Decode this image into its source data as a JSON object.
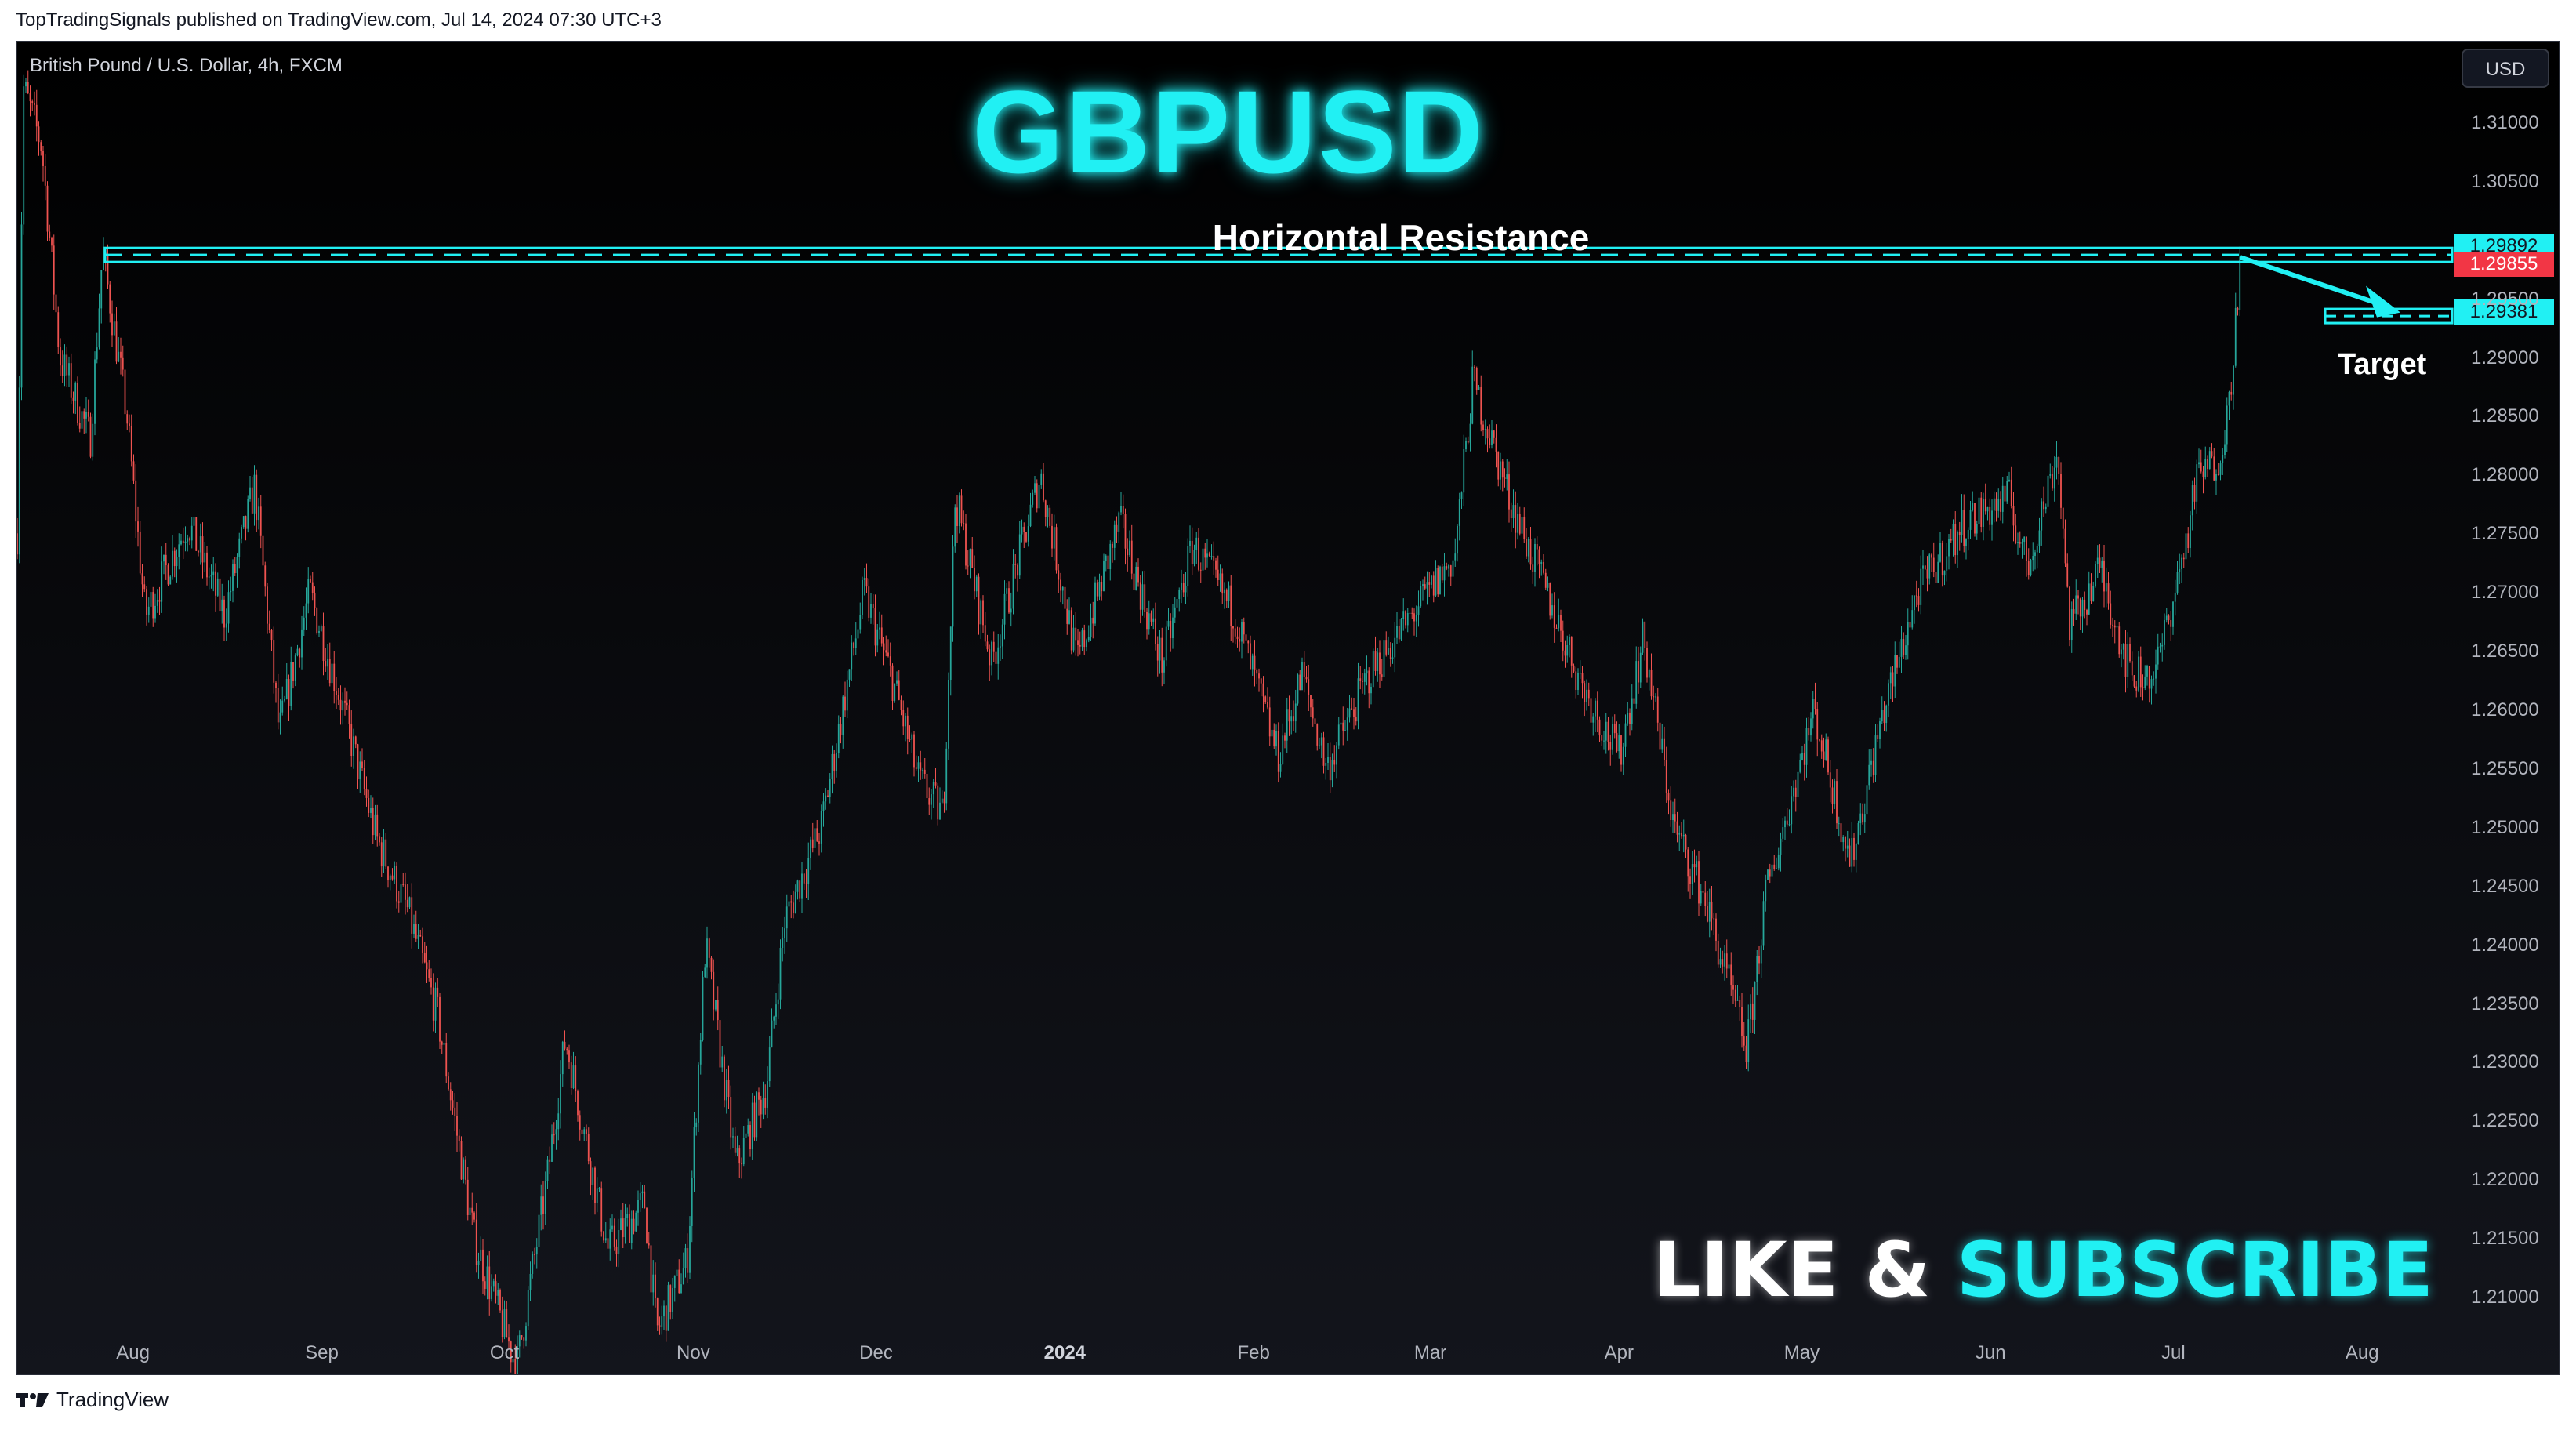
{
  "header": {
    "published_line": "TopTradingSignals published on TradingView.com, Jul 14, 2024 07:30 UTC+3"
  },
  "chart": {
    "symbol_line": "British Pound / U.S. Dollar, 4h, FXCM",
    "currency_button": "USD",
    "title": "GBPUSD",
    "resistance_label": "Horizontal Resistance",
    "target_label": "Target",
    "cta": {
      "like": "LIKE &",
      "subscribe": "SUBSCRIBE"
    },
    "price_tags": [
      {
        "value": "1.29892",
        "color": "#21f0f3"
      },
      {
        "value": "1.29855",
        "color": "#f23645"
      },
      {
        "value": "1.29381",
        "color": "#21f0f3"
      }
    ],
    "partial_axis_label": "1.29500"
  },
  "footer": {
    "brand": "TradingView"
  },
  "colors": {
    "up": "#26a69a",
    "down": "#ef5350",
    "accent": "#21f0f3",
    "background": "#0b0c10"
  },
  "chart_data": {
    "type": "candlestick",
    "y_axis_labels": [
      "1.31000",
      "1.30500",
      "1.29500",
      "1.29000",
      "1.28500",
      "1.28000",
      "1.27500",
      "1.27000",
      "1.26500",
      "1.26000",
      "1.25500",
      "1.25000",
      "1.24500",
      "1.24000",
      "1.23500",
      "1.23000",
      "1.22500",
      "1.22000",
      "1.21500",
      "1.21000"
    ],
    "ylim": [
      1.2032,
      1.3168
    ],
    "x_axis_labels": [
      "Aug",
      "Sep",
      "Oct",
      "Nov",
      "Dec",
      "2024",
      "Feb",
      "Mar",
      "Apr",
      "May",
      "Jun",
      "Jul",
      "Aug"
    ],
    "resistance_zone": [
      1.2981,
      1.2993
    ],
    "target_zone": [
      1.2929,
      1.2941
    ],
    "price_path": [
      {
        "date": "2023-07-13",
        "close": 1.275
      },
      {
        "date": "2023-07-14",
        "close": 1.313
      },
      {
        "date": "2023-07-17",
        "close": 1.308
      },
      {
        "date": "2023-07-20",
        "close": 1.29
      },
      {
        "date": "2023-07-25",
        "close": 1.283
      },
      {
        "date": "2023-07-27",
        "close": 1.299
      },
      {
        "date": "2023-07-31",
        "close": 1.285
      },
      {
        "date": "2023-08-03",
        "close": 1.268
      },
      {
        "date": "2023-08-10",
        "close": 1.276
      },
      {
        "date": "2023-08-16",
        "close": 1.268
      },
      {
        "date": "2023-08-21",
        "close": 1.279
      },
      {
        "date": "2023-08-25",
        "close": 1.258
      },
      {
        "date": "2023-08-30",
        "close": 1.27
      },
      {
        "date": "2023-09-04",
        "close": 1.261
      },
      {
        "date": "2023-09-10",
        "close": 1.249
      },
      {
        "date": "2023-09-15",
        "close": 1.243
      },
      {
        "date": "2023-09-20",
        "close": 1.234
      },
      {
        "date": "2023-09-26",
        "close": 1.215
      },
      {
        "date": "2023-10-03",
        "close": 1.204
      },
      {
        "date": "2023-10-08",
        "close": 1.22
      },
      {
        "date": "2023-10-11",
        "close": 1.232
      },
      {
        "date": "2023-10-18",
        "close": 1.214
      },
      {
        "date": "2023-10-24",
        "close": 1.218
      },
      {
        "date": "2023-10-26",
        "close": 1.207
      },
      {
        "date": "2023-10-31",
        "close": 1.213
      },
      {
        "date": "2023-11-03",
        "close": 1.24
      },
      {
        "date": "2023-11-08",
        "close": 1.221
      },
      {
        "date": "2023-11-13",
        "close": 1.228
      },
      {
        "date": "2023-11-16",
        "close": 1.242
      },
      {
        "date": "2023-11-22",
        "close": 1.25
      },
      {
        "date": "2023-11-29",
        "close": 1.27
      },
      {
        "date": "2023-12-04",
        "close": 1.262
      },
      {
        "date": "2023-12-08",
        "close": 1.254
      },
      {
        "date": "2023-12-12",
        "close": 1.251
      },
      {
        "date": "2023-12-14",
        "close": 1.278
      },
      {
        "date": "2023-12-20",
        "close": 1.264
      },
      {
        "date": "2023-12-28",
        "close": 1.28
      },
      {
        "date": "2024-01-03",
        "close": 1.264
      },
      {
        "date": "2024-01-10",
        "close": 1.276
      },
      {
        "date": "2024-01-17",
        "close": 1.264
      },
      {
        "date": "2024-01-22",
        "close": 1.274
      },
      {
        "date": "2024-01-29",
        "close": 1.268
      },
      {
        "date": "2024-02-05",
        "close": 1.256
      },
      {
        "date": "2024-02-09",
        "close": 1.263
      },
      {
        "date": "2024-02-13",
        "close": 1.255
      },
      {
        "date": "2024-02-20",
        "close": 1.263
      },
      {
        "date": "2024-02-27",
        "close": 1.268
      },
      {
        "date": "2024-03-05",
        "close": 1.273
      },
      {
        "date": "2024-03-08",
        "close": 1.288
      },
      {
        "date": "2024-03-14",
        "close": 1.278
      },
      {
        "date": "2024-03-20",
        "close": 1.27
      },
      {
        "date": "2024-03-26",
        "close": 1.262
      },
      {
        "date": "2024-04-01",
        "close": 1.256
      },
      {
        "date": "2024-04-05",
        "close": 1.266
      },
      {
        "date": "2024-04-10",
        "close": 1.25
      },
      {
        "date": "2024-04-15",
        "close": 1.244
      },
      {
        "date": "2024-04-22",
        "close": 1.231
      },
      {
        "date": "2024-04-25",
        "close": 1.244
      },
      {
        "date": "2024-04-30",
        "close": 1.254
      },
      {
        "date": "2024-05-03",
        "close": 1.26
      },
      {
        "date": "2024-05-09",
        "close": 1.247
      },
      {
        "date": "2024-05-14",
        "close": 1.259
      },
      {
        "date": "2024-05-20",
        "close": 1.27
      },
      {
        "date": "2024-05-28",
        "close": 1.276
      },
      {
        "date": "2024-06-04",
        "close": 1.278
      },
      {
        "date": "2024-06-07",
        "close": 1.272
      },
      {
        "date": "2024-06-12",
        "close": 1.282
      },
      {
        "date": "2024-06-14",
        "close": 1.267
      },
      {
        "date": "2024-06-19",
        "close": 1.272
      },
      {
        "date": "2024-06-24",
        "close": 1.263
      },
      {
        "date": "2024-06-28",
        "close": 1.263
      },
      {
        "date": "2024-07-03",
        "close": 1.274
      },
      {
        "date": "2024-07-05",
        "close": 1.28
      },
      {
        "date": "2024-07-08",
        "close": 1.281
      },
      {
        "date": "2024-07-10",
        "close": 1.285
      },
      {
        "date": "2024-07-12",
        "close": 1.2985
      }
    ]
  }
}
